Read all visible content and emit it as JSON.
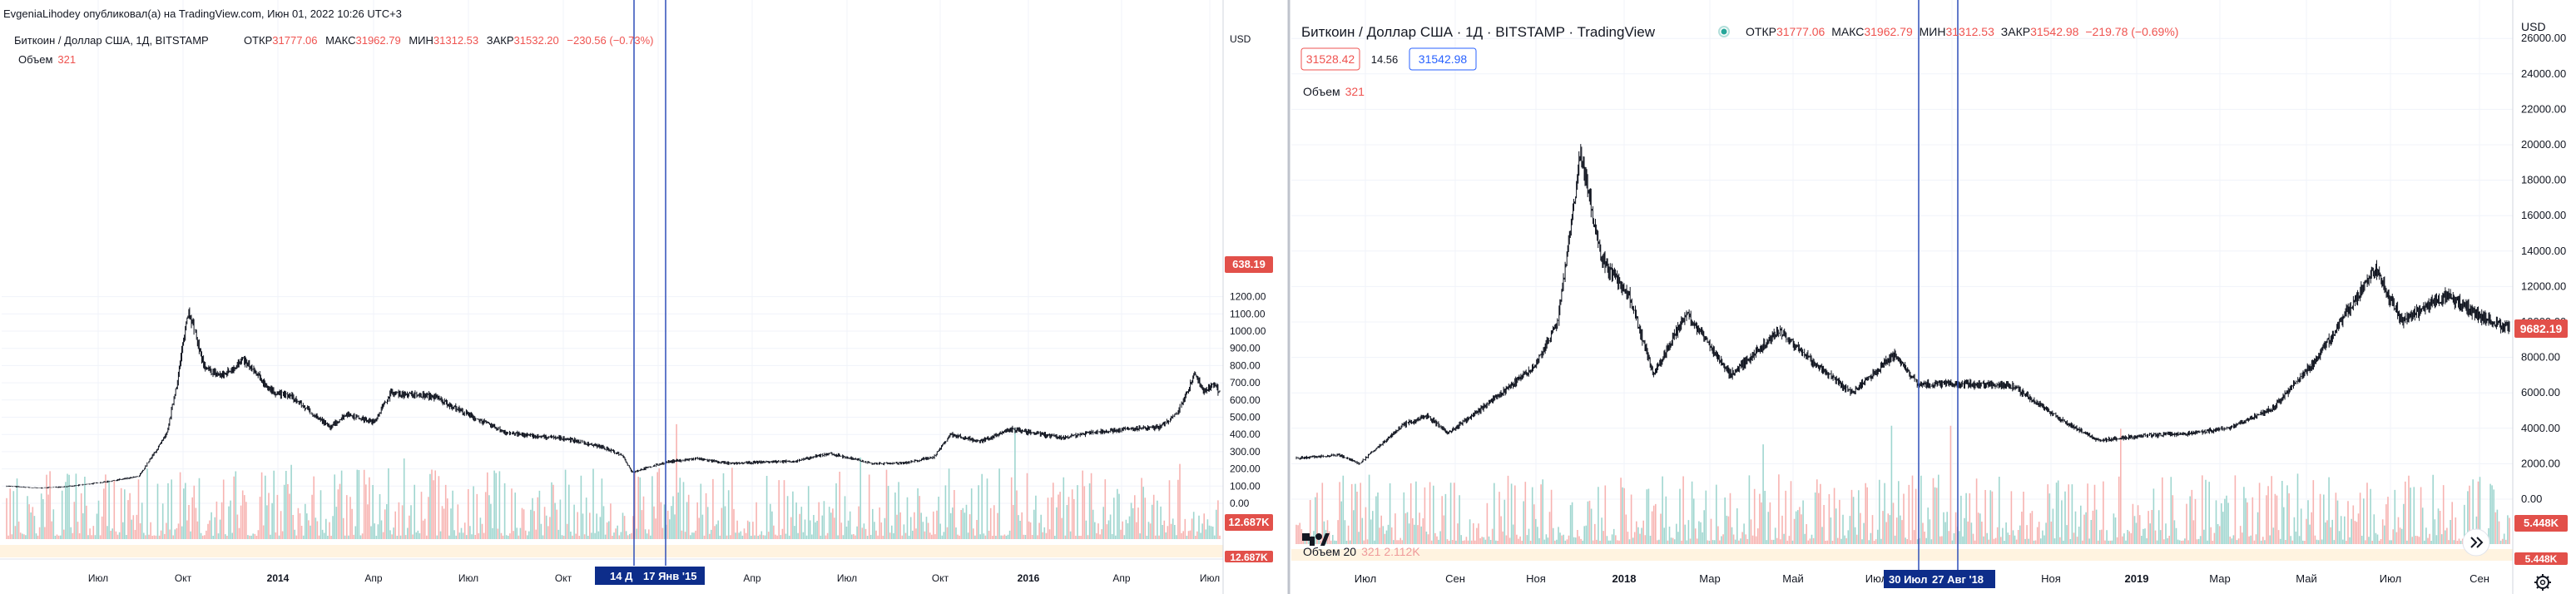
{
  "left_panel": {
    "publisher_line": "EvgeniaLihodey опубликовал(а) на TradingView.com, Июн 01, 2022 10:26 UTC+3",
    "symbol_title": "Биткоин / Доллар США, 1Д, BITSTAMP",
    "ohlc": {
      "o_label": "ОТКР",
      "o": "31777.06",
      "h_label": "МАКС",
      "h": "31962.79",
      "l_label": "МИН",
      "l": "31312.53",
      "c_label": "ЗАКР",
      "c": "31532.20",
      "change": "−230.56 (−0.73%)"
    },
    "volume_label": "Объем",
    "volume_value": "321",
    "price_axis_unit": "USD",
    "last_price": "638.19",
    "volume_badge_top": "12.687K",
    "volume_badge_bottom": "12.687K",
    "range_start_label": "14 Д",
    "range_end_label": "17 Янв '15"
  },
  "right_panel": {
    "symbol_title": "Биткоин / Доллар США · 1Д · BITSTAMP · TradingView",
    "ohlc": {
      "o_label": "ОТКР",
      "o": "31777.06",
      "h_label": "МАКС",
      "h": "31962.79",
      "l_label": "МИН",
      "l": "31312.53",
      "c_label": "ЗАКР",
      "c": "31542.98",
      "change": "−219.78 (−0.69%)"
    },
    "bid": "31528.42",
    "spread": "14.56",
    "ask": "31542.98",
    "volume_label": "Объем",
    "volume_value": "321",
    "volume20_label": "Объем 20",
    "volume20_values": "321  2.112K",
    "price_axis_unit": "USD",
    "last_price": "9682.19",
    "volume_badge_top": "5.448K",
    "volume_badge_bottom": "5.448K",
    "range_start_label": "30 Июл",
    "range_end_label": "27 Авг '18"
  },
  "colors": {
    "up": "#26a69a",
    "down": "#ef5350",
    "candle": "#131722",
    "marker_line": "#2e4fb8",
    "marker_label_bg": "#0d2d8a",
    "price_badge": "#e2504a",
    "volume_up": "#9fd6cf",
    "volume_down": "#f7b3b1"
  },
  "chart_data": [
    {
      "type": "candlestick",
      "title": "Биткоин / Доллар США, 1Д, BITSTAMP",
      "xlabel": "",
      "ylabel": "USD",
      "x_tick_labels": [
        "Июл",
        "Окт",
        "2014",
        "Апр",
        "Июл",
        "Окт",
        "2015",
        "Апр",
        "Июл",
        "Окт",
        "2016",
        "Апр",
        "Июл"
      ],
      "y_ticks": [
        0,
        100,
        200,
        300,
        400,
        500,
        600,
        700,
        800,
        900,
        1000,
        1100,
        1200
      ],
      "ylim": [
        0,
        1250
      ],
      "series": [
        {
          "x": [
            "2013-06-15",
            "2013-07-15",
            "2013-08-15",
            "2013-09-15",
            "2013-10-15",
            "2013-11-10",
            "2013-11-20",
            "2013-11-30",
            "2013-12-15",
            "2013-12-31",
            "2014-01-20",
            "2014-02-15",
            "2014-03-05",
            "2014-04-10",
            "2014-04-25",
            "2014-05-20",
            "2014-06-05",
            "2014-07-15",
            "2014-08-20",
            "2014-09-20",
            "2014-10-15",
            "2014-11-15",
            "2014-12-15",
            "2015-01-05",
            "2015-01-14",
            "2015-02-15",
            "2015-03-15",
            "2015-04-15",
            "2015-05-15",
            "2015-06-15",
            "2015-07-15",
            "2015-08-25",
            "2015-09-25",
            "2015-10-20",
            "2015-11-04",
            "2015-12-01",
            "2015-12-31",
            "2016-02-15",
            "2016-03-15",
            "2016-04-15",
            "2016-05-15",
            "2016-06-01",
            "2016-06-17",
            "2016-06-25",
            "2016-07-05",
            "2016-07-10"
          ],
          "close": [
            100,
            88,
            100,
            125,
            155,
            400,
            720,
            1130,
            780,
            740,
            830,
            650,
            620,
            440,
            520,
            470,
            640,
            620,
            500,
            410,
            390,
            375,
            330,
            280,
            180,
            240,
            260,
            230,
            240,
            245,
            290,
            230,
            235,
            270,
            400,
            360,
            430,
            380,
            415,
            430,
            440,
            520,
            750,
            650,
            690,
            638.19
          ]
        }
      ]
    },
    {
      "type": "candlestick",
      "title": "Биткоин / Доллар США · 1Д · BITSTAMP · TradingView",
      "xlabel": "",
      "ylabel": "USD",
      "x_tick_labels": [
        "Июл",
        "Сен",
        "Ноя",
        "2018",
        "Мар",
        "Май",
        "Июл",
        "Сен",
        "Ноя",
        "2019",
        "Мар",
        "Май",
        "Июл",
        "Сен"
      ],
      "y_ticks": [
        0,
        2000,
        4000,
        6000,
        8000,
        10000,
        12000,
        14000,
        16000,
        18000,
        20000,
        22000,
        24000,
        26000
      ],
      "ylim": [
        0,
        26500
      ],
      "series": [
        {
          "x": [
            "2017-06-01",
            "2017-07-01",
            "2017-07-15",
            "2017-08-15",
            "2017-09-01",
            "2017-09-15",
            "2017-10-15",
            "2017-11-15",
            "2017-12-01",
            "2017-12-17",
            "2018-01-01",
            "2018-01-20",
            "2018-02-06",
            "2018-03-01",
            "2018-04-01",
            "2018-05-05",
            "2018-06-01",
            "2018-06-25",
            "2018-07-25",
            "2018-08-10",
            "2018-09-15",
            "2018-10-15",
            "2018-11-20",
            "2018-12-15",
            "2019-01-15",
            "2019-02-15",
            "2019-03-15",
            "2019-04-15",
            "2019-05-15",
            "2019-06-26",
            "2019-07-15",
            "2019-08-15",
            "2019-09-15",
            "2019-09-28"
          ],
          "close": [
            2300,
            2500,
            2000,
            4200,
            4700,
            3700,
            5500,
            7500,
            10000,
            19500,
            13500,
            11500,
            7000,
            10500,
            7000,
            9500,
            7500,
            6000,
            8200,
            6500,
            6500,
            6400,
            4400,
            3300,
            3600,
            3700,
            4000,
            5100,
            7800,
            13000,
            10000,
            11500,
            10000,
            9682.19
          ]
        }
      ]
    }
  ]
}
